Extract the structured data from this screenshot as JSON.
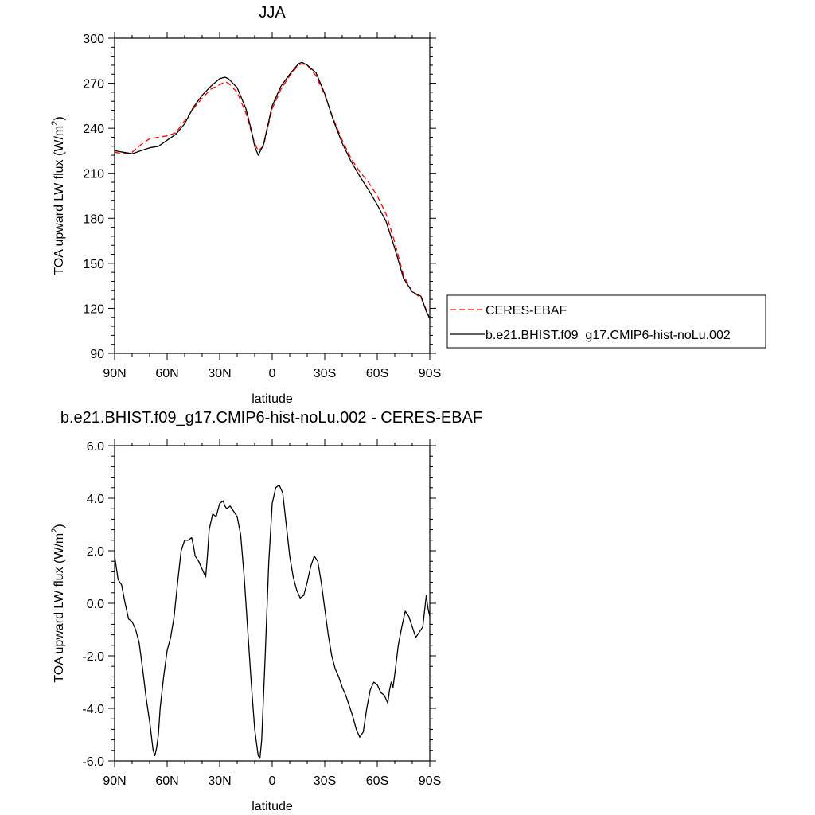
{
  "chart_data": [
    {
      "type": "line",
      "title": "JJA",
      "xlabel": "latitude",
      "ylabel": "TOA upward LW flux (W/m",
      "ylabel_sup": "2",
      "ylabel_close": ")",
      "xlim": [
        90,
        -90
      ],
      "ylim": [
        90,
        300
      ],
      "xticks": [
        90,
        60,
        30,
        0,
        -30,
        -60,
        -90
      ],
      "xtick_labels": [
        "90N",
        "60N",
        "30N",
        "0",
        "30S",
        "60S",
        "90S"
      ],
      "yticks": [
        90,
        120,
        150,
        180,
        210,
        240,
        270,
        300
      ],
      "ytick_labels": [
        "90",
        "120",
        "150",
        "180",
        "210",
        "240",
        "270",
        "300"
      ],
      "legend": "right",
      "series": [
        {
          "name": "CERES-EBAF",
          "color": "#ff0000",
          "dash": "dashed",
          "x": [
            90,
            85,
            80,
            75,
            70,
            65,
            60,
            55,
            50,
            45,
            40,
            35,
            30,
            27,
            25,
            20,
            15,
            12,
            10,
            8,
            5,
            0,
            -5,
            -10,
            -15,
            -17,
            -20,
            -25,
            -30,
            -35,
            -40,
            -45,
            -50,
            -55,
            -60,
            -65,
            -70,
            -72,
            -75,
            -80,
            -85,
            -88,
            -90
          ],
          "y": [
            224,
            223,
            224,
            229,
            233,
            234,
            235,
            237,
            245,
            253,
            260,
            266,
            269,
            271,
            270,
            264,
            250,
            238,
            230,
            225,
            228,
            253,
            266,
            275,
            282,
            283,
            282,
            275,
            262,
            246,
            232,
            220,
            211,
            204,
            195,
            183,
            164,
            155,
            142,
            131,
            127,
            119,
            113
          ]
        },
        {
          "name": "b.e21.BHIST.f09_g17.CMIP6-hist-noLu.002",
          "color": "#000000",
          "dash": "solid",
          "x": [
            90,
            85,
            80,
            75,
            70,
            65,
            60,
            55,
            50,
            45,
            40,
            35,
            30,
            27,
            25,
            20,
            15,
            12,
            10,
            8,
            5,
            0,
            -5,
            -10,
            -15,
            -17,
            -20,
            -25,
            -30,
            -35,
            -40,
            -45,
            -50,
            -55,
            -60,
            -65,
            -70,
            -72,
            -75,
            -80,
            -85,
            -88,
            -90
          ],
          "y": [
            225,
            224,
            223,
            225,
            227,
            228,
            232,
            236,
            243,
            254,
            262,
            268,
            273,
            274,
            273,
            267,
            253,
            239,
            228,
            222,
            229,
            255,
            268,
            276,
            283,
            284,
            282,
            277,
            263,
            245,
            230,
            218,
            208,
            199,
            189,
            178,
            160,
            152,
            140,
            131,
            128,
            118,
            113
          ]
        }
      ]
    },
    {
      "type": "line",
      "title": "b.e21.BHIST.f09_g17.CMIP6-hist-noLu.002 - CERES-EBAF",
      "xlabel": "latitude",
      "ylabel": "TOA upward LW flux (W/m",
      "ylabel_sup": "2",
      "ylabel_close": ")",
      "xlim": [
        90,
        -90
      ],
      "ylim": [
        -6.0,
        6.0
      ],
      "xticks": [
        90,
        60,
        30,
        0,
        -30,
        -60,
        -90
      ],
      "xtick_labels": [
        "90N",
        "60N",
        "30N",
        "0",
        "30S",
        "60S",
        "90S"
      ],
      "yticks": [
        6,
        4,
        2,
        0,
        -2,
        -4,
        -6
      ],
      "ytick_labels": [
        "6.0",
        "4.0",
        "2.0",
        "0.0",
        "-2.0",
        "-4.0",
        "-6.0"
      ],
      "series": [
        {
          "name": "",
          "color": "#000000",
          "dash": "solid",
          "x": [
            90,
            88,
            86,
            84,
            82,
            80,
            78,
            76,
            74,
            72,
            70,
            68,
            67,
            66,
            65,
            64,
            62,
            60,
            58,
            56,
            54,
            52,
            50,
            48,
            46,
            45,
            44,
            42,
            40,
            38,
            37,
            36,
            34,
            32,
            30,
            28,
            27,
            26,
            24,
            22,
            20,
            18,
            16,
            14,
            12,
            10,
            8,
            7,
            6,
            4,
            2,
            0,
            -2,
            -4,
            -6,
            -8,
            -10,
            -12,
            -14,
            -16,
            -18,
            -20,
            -22,
            -24,
            -26,
            -28,
            -30,
            -32,
            -34,
            -36,
            -38,
            -40,
            -42,
            -44,
            -46,
            -48,
            -50,
            -52,
            -54,
            -56,
            -58,
            -60,
            -62,
            -64,
            -66,
            -67,
            -68,
            -69,
            -70,
            -72,
            -74,
            -76,
            -78,
            -80,
            -82,
            -84,
            -86,
            -88,
            -89,
            -90
          ],
          "y": [
            1.8,
            0.9,
            0.7,
            0.0,
            -0.6,
            -0.7,
            -1.0,
            -1.5,
            -2.5,
            -3.6,
            -4.5,
            -5.6,
            -5.8,
            -5.5,
            -5.0,
            -4.0,
            -2.8,
            -1.8,
            -1.3,
            -0.5,
            0.8,
            2.0,
            2.4,
            2.4,
            2.5,
            2.2,
            1.8,
            1.6,
            1.3,
            1.0,
            1.8,
            2.8,
            3.4,
            3.3,
            3.8,
            3.9,
            3.7,
            3.6,
            3.7,
            3.5,
            3.3,
            2.6,
            1.0,
            -1.0,
            -3.0,
            -4.8,
            -5.8,
            -5.9,
            -5.2,
            -2.0,
            1.5,
            3.8,
            4.4,
            4.5,
            4.2,
            3.0,
            1.8,
            1.0,
            0.5,
            0.2,
            0.3,
            0.8,
            1.4,
            1.8,
            1.6,
            0.8,
            -0.2,
            -1.2,
            -2.0,
            -2.5,
            -2.8,
            -3.2,
            -3.5,
            -3.9,
            -4.3,
            -4.8,
            -5.1,
            -4.9,
            -4.0,
            -3.3,
            -3.0,
            -3.1,
            -3.4,
            -3.5,
            -3.8,
            -3.3,
            -3.0,
            -3.2,
            -2.7,
            -1.6,
            -0.9,
            -0.3,
            -0.5,
            -0.9,
            -1.3,
            -1.1,
            -0.9,
            0.3,
            -0.2,
            -0.5
          ]
        }
      ]
    }
  ]
}
